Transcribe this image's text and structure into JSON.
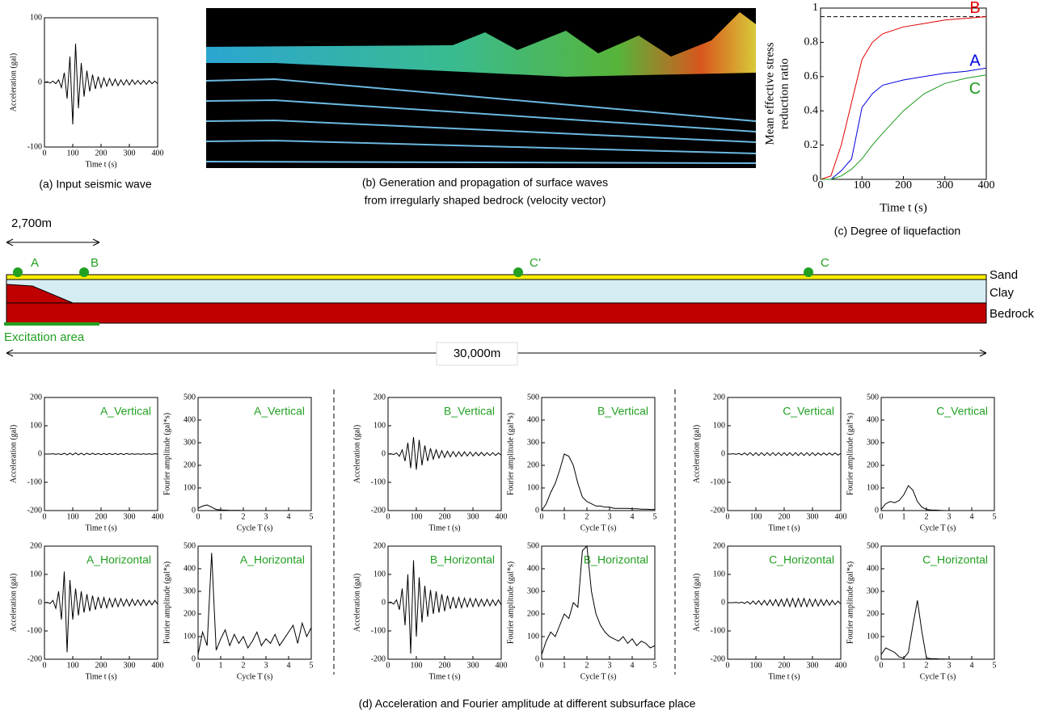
{
  "chart_data": [
    {
      "type": "line",
      "xlabel": "Time t (s)",
      "ylabel": "Acceleration (gal)",
      "xlim": [
        0,
        400
      ],
      "ylim": [
        -100,
        100
      ],
      "xticks": [
        0,
        100,
        200,
        300,
        400
      ],
      "yticks": [
        -100,
        0,
        100
      ],
      "color": "#000000",
      "x": [
        0,
        10,
        20,
        30,
        40,
        50,
        60,
        70,
        80,
        90,
        100,
        110,
        120,
        130,
        140,
        150,
        160,
        170,
        180,
        190,
        200,
        210,
        220,
        230,
        240,
        250,
        260,
        270,
        280,
        290,
        300,
        310,
        320,
        330,
        340,
        350,
        360,
        370,
        380,
        390,
        400
      ],
      "values": [
        0,
        1,
        -1,
        2,
        -2,
        4,
        -8,
        15,
        -25,
        40,
        -65,
        60,
        -40,
        30,
        -22,
        18,
        -14,
        12,
        -10,
        9,
        -8,
        7,
        -6,
        6,
        -5,
        5,
        -5,
        4,
        -4,
        4,
        -4,
        4,
        -3,
        3,
        -3,
        3,
        -3,
        3,
        -2,
        2,
        -2
      ]
    },
    {
      "type": "line",
      "xlabel": "Time t (s)",
      "ylabel": [
        "Mean effective stress",
        "reduction ratio"
      ],
      "xlim": [
        0,
        400
      ],
      "ylim": [
        0,
        1
      ],
      "xticks": [
        0,
        100,
        200,
        300,
        400
      ],
      "yticks": [
        0,
        0.2,
        0.4,
        0.6,
        0.8,
        1
      ],
      "reference_line": 0.95,
      "x": [
        0,
        25,
        50,
        75,
        100,
        125,
        150,
        200,
        250,
        300,
        350,
        400
      ],
      "series": [
        {
          "name": "B",
          "color": "#e00000",
          "values": [
            0,
            0.02,
            0.2,
            0.45,
            0.7,
            0.8,
            0.85,
            0.89,
            0.91,
            0.93,
            0.94,
            0.95
          ]
        },
        {
          "name": "A",
          "color": "#0000e0",
          "values": [
            0,
            0,
            0.05,
            0.12,
            0.42,
            0.5,
            0.55,
            0.58,
            0.6,
            0.62,
            0.63,
            0.65
          ]
        },
        {
          "name": "C",
          "color": "#1a9a1a",
          "values": [
            0,
            0,
            0.02,
            0.06,
            0.12,
            0.2,
            0.27,
            0.4,
            0.5,
            0.56,
            0.59,
            0.61
          ]
        }
      ]
    },
    {
      "type": "line",
      "title": "A_Vertical",
      "xlabel": "Time t (s)",
      "ylabel": "Acceleration (gal)",
      "xlim": [
        0,
        400
      ],
      "ylim": [
        -200,
        200
      ],
      "xticks": [
        0,
        100,
        200,
        300,
        400
      ],
      "yticks": [
        -200,
        -100,
        0,
        100,
        200
      ],
      "color": "#000000",
      "x": [
        0,
        10,
        20,
        30,
        40,
        50,
        60,
        70,
        80,
        90,
        100,
        110,
        120,
        130,
        140,
        150,
        160,
        170,
        180,
        190,
        200,
        210,
        220,
        230,
        240,
        250,
        260,
        270,
        280,
        290,
        300,
        310,
        320,
        330,
        340,
        350,
        360,
        370,
        380,
        390,
        400
      ],
      "values": [
        0,
        0,
        0,
        1,
        -1,
        1,
        -2,
        3,
        -3,
        3,
        -3,
        4,
        -3,
        3,
        -3,
        3,
        -2,
        3,
        -2,
        2,
        -2,
        2,
        -2,
        2,
        -2,
        2,
        -2,
        2,
        -2,
        2,
        -1,
        1,
        -1,
        1,
        -1,
        1,
        -1,
        1,
        -1,
        1,
        0
      ]
    },
    {
      "type": "line",
      "title": "A_Vertical",
      "xlabel": "Cycle T (s)",
      "ylabel": "Fourier amplitude (gal*s)",
      "xlim": [
        0,
        5
      ],
      "ylim": [
        0,
        500
      ],
      "xticks": [
        0,
        1,
        2,
        3,
        4,
        5
      ],
      "yticks": [
        0,
        100,
        200,
        300,
        400,
        500
      ],
      "color": "#000000",
      "x": [
        0,
        0.2,
        0.4,
        0.6,
        0.8,
        1,
        1.2,
        1.4,
        1.6,
        1.8,
        2,
        2.2,
        2.4,
        2.6,
        2.8,
        3,
        3.2,
        3.4,
        3.6,
        3.8,
        4,
        4.2,
        4.4,
        4.6,
        4.8,
        5
      ],
      "values": [
        10,
        20,
        25,
        15,
        5,
        3,
        2,
        1,
        1,
        1,
        0,
        0,
        0,
        0,
        0,
        0,
        0,
        0,
        0,
        0,
        0,
        0,
        0,
        0,
        0,
        0
      ]
    },
    {
      "type": "line",
      "title": "B_Vertical",
      "xlabel": "Time t (s)",
      "ylabel": "Acceleration (gal)",
      "xlim": [
        0,
        400
      ],
      "ylim": [
        -200,
        200
      ],
      "xticks": [
        0,
        100,
        200,
        300,
        400
      ],
      "yticks": [
        -200,
        -100,
        0,
        100,
        200
      ],
      "color": "#000000",
      "x": [
        0,
        10,
        20,
        30,
        40,
        50,
        60,
        70,
        80,
        90,
        100,
        110,
        120,
        130,
        140,
        150,
        160,
        170,
        180,
        190,
        200,
        210,
        220,
        230,
        240,
        250,
        260,
        270,
        280,
        290,
        300,
        310,
        320,
        330,
        340,
        350,
        360,
        370,
        380,
        390,
        400
      ],
      "values": [
        0,
        1,
        -2,
        4,
        -8,
        15,
        -25,
        40,
        -50,
        60,
        -55,
        50,
        -40,
        30,
        -25,
        20,
        -18,
        15,
        -14,
        12,
        -12,
        10,
        -10,
        9,
        -9,
        8,
        -8,
        8,
        -7,
        7,
        -7,
        6,
        -6,
        6,
        -6,
        5,
        -5,
        5,
        -5,
        4,
        -4
      ]
    },
    {
      "type": "line",
      "title": "B_Vertical",
      "xlabel": "Cycle T (s)",
      "ylabel": "Fourier amplitude (gal*s)",
      "xlim": [
        0,
        5
      ],
      "ylim": [
        0,
        500
      ],
      "xticks": [
        0,
        1,
        2,
        3,
        4,
        5
      ],
      "yticks": [
        0,
        100,
        200,
        300,
        400,
        500
      ],
      "color": "#000000",
      "x": [
        0,
        0.2,
        0.4,
        0.6,
        0.8,
        1,
        1.2,
        1.4,
        1.6,
        1.8,
        2,
        2.2,
        2.4,
        2.6,
        2.8,
        3,
        3.2,
        3.4,
        3.6,
        3.8,
        4,
        4.2,
        4.4,
        4.6,
        4.8,
        5
      ],
      "values": [
        0,
        30,
        80,
        120,
        180,
        250,
        240,
        200,
        120,
        60,
        40,
        30,
        20,
        20,
        15,
        15,
        10,
        10,
        10,
        10,
        8,
        8,
        6,
        6,
        5,
        5
      ]
    },
    {
      "type": "line",
      "title": "C_Vertical",
      "xlabel": "Time t (s)",
      "ylabel": "Acceleration (gal)",
      "xlim": [
        0,
        400
      ],
      "ylim": [
        -200,
        200
      ],
      "xticks": [
        0,
        100,
        200,
        300,
        400
      ],
      "yticks": [
        -200,
        -100,
        0,
        100,
        200
      ],
      "color": "#000000",
      "x": [
        0,
        10,
        20,
        30,
        40,
        50,
        60,
        70,
        80,
        90,
        100,
        110,
        120,
        130,
        140,
        150,
        160,
        170,
        180,
        190,
        200,
        210,
        220,
        230,
        240,
        250,
        260,
        270,
        280,
        290,
        300,
        310,
        320,
        330,
        340,
        350,
        360,
        370,
        380,
        390,
        400
      ],
      "values": [
        0,
        0,
        1,
        -1,
        2,
        -3,
        4,
        -4,
        5,
        -5,
        5,
        -5,
        5,
        -5,
        5,
        -5,
        5,
        -5,
        5,
        -5,
        5,
        -5,
        5,
        -5,
        5,
        -5,
        5,
        -5,
        5,
        -5,
        5,
        -5,
        4,
        -4,
        4,
        -4,
        4,
        -4,
        4,
        -4,
        3
      ]
    },
    {
      "type": "line",
      "title": "C_Vertical",
      "xlabel": "Cycle T (s)",
      "ylabel": "Fourier amplitude (gal*s)",
      "xlim": [
        0,
        5
      ],
      "ylim": [
        0,
        500
      ],
      "xticks": [
        0,
        1,
        2,
        3,
        4,
        5
      ],
      "yticks": [
        0,
        100,
        200,
        300,
        400,
        500
      ],
      "color": "#000000",
      "x": [
        0,
        0.2,
        0.4,
        0.6,
        0.8,
        1,
        1.2,
        1.4,
        1.6,
        1.8,
        2,
        2.2,
        2.4,
        2.6,
        2.8,
        3,
        3.2,
        3.4,
        3.6,
        3.8,
        4,
        4.2,
        4.4,
        4.6,
        4.8,
        5
      ],
      "values": [
        5,
        30,
        40,
        35,
        45,
        70,
        110,
        90,
        40,
        15,
        5,
        3,
        2,
        1,
        0,
        0,
        0,
        0,
        0,
        0,
        0,
        0,
        0,
        0,
        0,
        0
      ]
    },
    {
      "type": "line",
      "title": "A_Horizontal",
      "xlabel": "Time t (s)",
      "ylabel": "Acceleration (gal)",
      "xlim": [
        0,
        400
      ],
      "ylim": [
        -200,
        200
      ],
      "xticks": [
        0,
        100,
        200,
        300,
        400
      ],
      "yticks": [
        -200,
        -100,
        0,
        100,
        200
      ],
      "color": "#000000",
      "x": [
        0,
        10,
        20,
        30,
        40,
        50,
        60,
        70,
        80,
        90,
        100,
        110,
        120,
        130,
        140,
        150,
        160,
        170,
        180,
        190,
        200,
        210,
        220,
        230,
        240,
        250,
        260,
        270,
        280,
        290,
        300,
        310,
        320,
        330,
        340,
        350,
        360,
        370,
        380,
        390,
        400
      ],
      "values": [
        0,
        1,
        -3,
        8,
        -20,
        40,
        -60,
        110,
        -175,
        80,
        -60,
        50,
        -45,
        40,
        -35,
        30,
        -30,
        25,
        -25,
        20,
        -20,
        18,
        -18,
        15,
        -15,
        15,
        -14,
        14,
        -12,
        12,
        -12,
        12,
        -10,
        10,
        -10,
        10,
        -10,
        8,
        -8,
        8,
        -6
      ]
    },
    {
      "type": "line",
      "title": "A_Horizontal",
      "xlabel": "Cycle T (s)",
      "ylabel": "Fourier amplitude (gal*s)",
      "xlim": [
        0,
        5
      ],
      "ylim": [
        0,
        500
      ],
      "xticks": [
        0,
        1,
        2,
        3,
        4,
        5
      ],
      "yticks": [
        0,
        100,
        200,
        300,
        400,
        500
      ],
      "color": "#000000",
      "x": [
        0,
        0.2,
        0.4,
        0.6,
        0.8,
        1,
        1.2,
        1.4,
        1.6,
        1.8,
        2,
        2.2,
        2.4,
        2.6,
        2.8,
        3,
        3.2,
        3.4,
        3.6,
        3.8,
        4,
        4.2,
        4.4,
        4.6,
        4.8,
        5
      ],
      "values": [
        20,
        120,
        60,
        470,
        40,
        90,
        130,
        60,
        110,
        70,
        100,
        50,
        80,
        120,
        60,
        90,
        70,
        110,
        60,
        90,
        120,
        150,
        70,
        160,
        100,
        140
      ]
    },
    {
      "type": "line",
      "title": "B_Horizontal",
      "xlabel": "Time t (s)",
      "ylabel": "Acceleration (gal)",
      "xlim": [
        0,
        400
      ],
      "ylim": [
        -200,
        200
      ],
      "xticks": [
        0,
        100,
        200,
        300,
        400
      ],
      "yticks": [
        -200,
        -100,
        0,
        100,
        200
      ],
      "color": "#000000",
      "x": [
        0,
        10,
        20,
        30,
        40,
        50,
        60,
        70,
        80,
        90,
        100,
        110,
        120,
        130,
        140,
        150,
        160,
        170,
        180,
        190,
        200,
        210,
        220,
        230,
        240,
        250,
        260,
        270,
        280,
        290,
        300,
        310,
        320,
        330,
        340,
        350,
        360,
        370,
        380,
        390,
        400
      ],
      "values": [
        0,
        2,
        -5,
        10,
        -25,
        50,
        -80,
        100,
        -180,
        150,
        -120,
        90,
        -70,
        60,
        -50,
        45,
        -40,
        40,
        -35,
        30,
        -30,
        25,
        -22,
        20,
        -20,
        18,
        -18,
        16,
        -15,
        15,
        -14,
        14,
        -13,
        12,
        -12,
        12,
        -11,
        10,
        -10,
        10,
        -8
      ]
    },
    {
      "type": "line",
      "title": "B_Horizontal",
      "xlabel": "Cycle T (s)",
      "ylabel": "Fourier amplitude (gal*s)",
      "xlim": [
        0,
        5
      ],
      "ylim": [
        0,
        500
      ],
      "xticks": [
        0,
        1,
        2,
        3,
        4,
        5
      ],
      "yticks": [
        0,
        100,
        200,
        300,
        400,
        500
      ],
      "color": "#000000",
      "x": [
        0,
        0.2,
        0.4,
        0.6,
        0.8,
        1,
        1.2,
        1.4,
        1.6,
        1.8,
        2,
        2.2,
        2.4,
        2.6,
        2.8,
        3,
        3.2,
        3.4,
        3.6,
        3.8,
        4,
        4.2,
        4.4,
        4.6,
        4.8,
        5
      ],
      "values": [
        20,
        80,
        120,
        100,
        150,
        200,
        180,
        250,
        230,
        480,
        500,
        300,
        200,
        150,
        120,
        100,
        90,
        80,
        100,
        70,
        90,
        60,
        80,
        70,
        50,
        60
      ]
    },
    {
      "type": "line",
      "title": "C_Horizontal",
      "xlabel": "Time t (s)",
      "ylabel": "Acceleration (gal)",
      "xlim": [
        0,
        400
      ],
      "ylim": [
        -200,
        200
      ],
      "xticks": [
        0,
        100,
        200,
        300,
        400
      ],
      "yticks": [
        -200,
        -100,
        0,
        100,
        200
      ],
      "color": "#000000",
      "x": [
        0,
        10,
        20,
        30,
        40,
        50,
        60,
        70,
        80,
        90,
        100,
        110,
        120,
        130,
        140,
        150,
        160,
        170,
        180,
        190,
        200,
        210,
        220,
        230,
        240,
        250,
        260,
        270,
        280,
        290,
        300,
        310,
        320,
        330,
        340,
        350,
        360,
        370,
        380,
        390,
        400
      ],
      "values": [
        0,
        0,
        0,
        1,
        -1,
        2,
        -3,
        4,
        -5,
        6,
        -6,
        7,
        -8,
        8,
        -9,
        10,
        -10,
        11,
        -12,
        12,
        -13,
        14,
        -14,
        15,
        -15,
        15,
        -14,
        15,
        -14,
        13,
        -13,
        12,
        -12,
        11,
        -10,
        10,
        -9,
        8,
        -7,
        6,
        -5
      ]
    },
    {
      "type": "line",
      "title": "C_Horizontal",
      "xlabel": "Cycle T (s)",
      "ylabel": "Fourier amplitude (gal*s)",
      "xlim": [
        0,
        5
      ],
      "ylim": [
        0,
        500
      ],
      "xticks": [
        0,
        1,
        2,
        3,
        4,
        5
      ],
      "yticks": [
        0,
        100,
        200,
        300,
        400,
        500
      ],
      "color": "#000000",
      "x": [
        0,
        0.2,
        0.4,
        0.6,
        0.8,
        1,
        1.2,
        1.4,
        1.6,
        1.8,
        2,
        2.2,
        2.4,
        2.6,
        2.8,
        3,
        3.2,
        3.4,
        3.6,
        3.8,
        4,
        4.2,
        4.4,
        4.6,
        4.8,
        5
      ],
      "values": [
        20,
        50,
        40,
        30,
        10,
        5,
        30,
        150,
        260,
        120,
        5,
        3,
        2,
        1,
        1,
        0,
        0,
        0,
        0,
        0,
        0,
        0,
        0,
        0,
        0,
        0
      ]
    }
  ],
  "captions": {
    "a": "(a) Input seismic wave",
    "b": [
      "(b) Generation and propagation of surface waves",
      "from irregularly shaped  bedrock (velocity vector)"
    ],
    "c": "(c) Degree of liquefaction",
    "d": "(d) Acceleration and Fourier amplitude  at different subsurface place"
  },
  "diagram": {
    "points": [
      "A",
      "B",
      "C’",
      "C"
    ],
    "layers": [
      "Sand",
      "Clay",
      "Bedrock"
    ],
    "width_label": "2,700m",
    "length_label": "30,000m",
    "excitation_label": "Excitation area"
  }
}
